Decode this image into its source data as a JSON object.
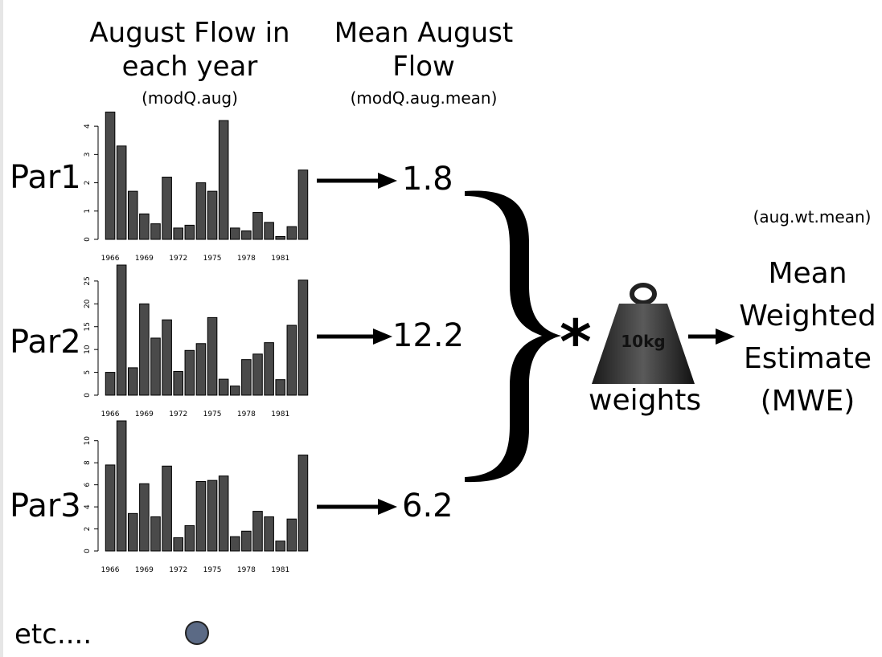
{
  "headers": {
    "col1_title_line1": "August Flow in",
    "col1_title_line2": "each year",
    "col1_sub": "(modQ.aug)",
    "col2_title_line1": "Mean August",
    "col2_title_line2": "Flow",
    "col2_sub": "(modQ.aug.mean)"
  },
  "result": {
    "sub": "(aug.wt.mean)",
    "line1": "Mean",
    "line2": "Weighted",
    "line3": "Estimate",
    "line4": "(MWE)"
  },
  "operator": {
    "symbol": "*"
  },
  "weight": {
    "label": "10kg",
    "caption": "weights"
  },
  "footer": {
    "etc": "etc...."
  },
  "rows": [
    {
      "label": "Par1",
      "mean": "1.8"
    },
    {
      "label": "Par2",
      "mean": "12.2"
    },
    {
      "label": "Par3",
      "mean": "6.2"
    }
  ],
  "chart_data": [
    {
      "type": "bar",
      "x": [
        1966,
        1967,
        1968,
        1969,
        1970,
        1971,
        1972,
        1973,
        1974,
        1975,
        1976,
        1977,
        1978,
        1979,
        1980,
        1981,
        1982,
        1983
      ],
      "values": [
        4.5,
        3.3,
        1.7,
        0.9,
        0.55,
        2.2,
        0.4,
        0.5,
        2.0,
        1.7,
        4.2,
        0.4,
        0.3,
        0.95,
        0.6,
        0.1,
        0.45,
        2.45
      ],
      "ylim": [
        0,
        4.6
      ],
      "yticks": [
        0,
        1,
        2,
        3,
        4
      ],
      "xtick_labels": [
        "1966",
        "1969",
        "1972",
        "1975",
        "1978",
        "1981"
      ]
    },
    {
      "type": "bar",
      "x": [
        1966,
        1967,
        1968,
        1969,
        1970,
        1971,
        1972,
        1973,
        1974,
        1975,
        1976,
        1977,
        1978,
        1979,
        1980,
        1981,
        1982,
        1983
      ],
      "values": [
        5.0,
        28.5,
        6.0,
        20.0,
        12.5,
        16.5,
        5.2,
        9.8,
        11.3,
        17.0,
        3.5,
        2.0,
        7.8,
        9.0,
        11.5,
        3.4,
        15.3,
        25.2
      ],
      "ylim": [
        0,
        28.5
      ],
      "yticks": [
        0,
        5,
        10,
        15,
        20,
        25
      ],
      "xtick_labels": [
        "1966",
        "1969",
        "1972",
        "1975",
        "1978",
        "1981"
      ]
    },
    {
      "type": "bar",
      "x": [
        1966,
        1967,
        1968,
        1969,
        1970,
        1971,
        1972,
        1973,
        1974,
        1975,
        1976,
        1977,
        1978,
        1979,
        1980,
        1981,
        1982,
        1983
      ],
      "values": [
        7.8,
        11.8,
        3.4,
        6.1,
        3.1,
        7.7,
        1.2,
        2.3,
        6.3,
        6.4,
        6.8,
        1.3,
        1.8,
        3.6,
        3.1,
        0.9,
        2.9,
        8.7
      ],
      "ylim": [
        0,
        11.8
      ],
      "yticks": [
        0,
        2,
        4,
        6,
        8,
        10
      ],
      "xtick_labels": [
        "1966",
        "1969",
        "1972",
        "1975",
        "1978",
        "1981"
      ]
    }
  ]
}
